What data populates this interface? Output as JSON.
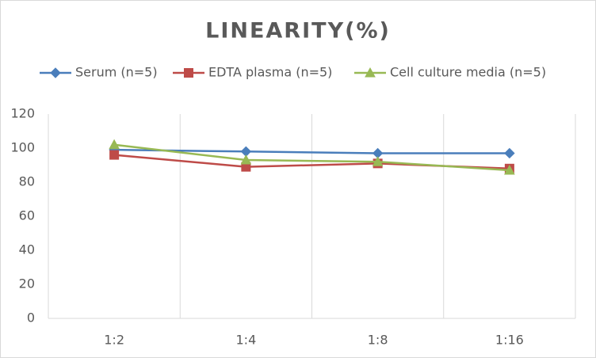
{
  "chart_data": {
    "type": "line",
    "title": "LINEARITY(%)",
    "categories": [
      "1:2",
      "1:4",
      "1:8",
      "1:16"
    ],
    "series": [
      {
        "name": "Serum (n=5)",
        "color": "#4a7ebb",
        "marker": "diamond",
        "values": [
          99,
          98,
          97,
          97
        ]
      },
      {
        "name": "EDTA plasma (n=5)",
        "color": "#be4b48",
        "marker": "square",
        "values": [
          96,
          89,
          91,
          88
        ]
      },
      {
        "name": "Cell culture media (n=5)",
        "color": "#98b954",
        "marker": "triangle",
        "values": [
          102,
          93,
          92,
          87
        ]
      }
    ],
    "ylim": [
      0,
      120
    ],
    "yticks": [
      0,
      20,
      40,
      60,
      80,
      100,
      120
    ],
    "grid": "vertical",
    "legend": "top"
  }
}
